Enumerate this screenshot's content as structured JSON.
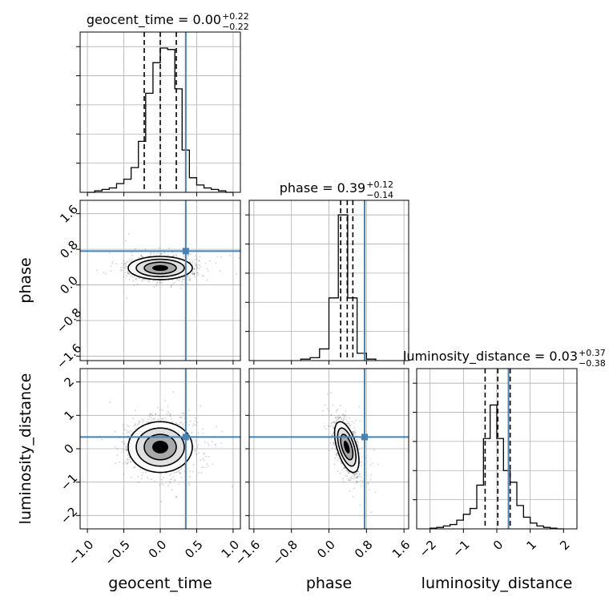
{
  "chart_data": {
    "type": "corner",
    "parameters": [
      "geocent_time",
      "phase",
      "luminosity_distance"
    ],
    "truth": {
      "geocent_time": 0.35,
      "phase": 0.76,
      "luminosity_distance": 0.35
    },
    "truth_color": "#4682b4",
    "grid": true,
    "diagonal": [
      {
        "parameter": "geocent_time",
        "title": {
          "prefix": "geocent_time = 0.00",
          "upper": "+0.22",
          "lower": "−0.22"
        },
        "quantiles": [
          -0.22,
          0.0,
          0.22
        ],
        "xlim": [
          -1.1,
          1.1
        ],
        "xticks": [
          -1.0,
          -0.5,
          0.0,
          0.5,
          1.0
        ],
        "xticklabels": [
          "−1.0",
          "−0.5",
          "0.0",
          "0.5",
          "1.0"
        ],
        "xlabel": "geocent_time",
        "ymax": 1.0,
        "hist": {
          "edges": [
            -1.0,
            -0.9,
            -0.8,
            -0.7,
            -0.6,
            -0.5,
            -0.4,
            -0.3,
            -0.2,
            -0.1,
            0.0,
            0.1,
            0.2,
            0.3,
            0.4,
            0.5,
            0.6,
            0.7,
            0.8,
            0.9,
            1.0
          ],
          "counts": [
            0.0,
            0.01,
            0.02,
            0.03,
            0.06,
            0.09,
            0.17,
            0.35,
            0.68,
            0.89,
            0.99,
            0.98,
            0.71,
            0.29,
            0.1,
            0.05,
            0.03,
            0.02,
            0.01,
            0.0
          ]
        }
      },
      {
        "parameter": "phase",
        "title": {
          "prefix": "phase = 0.39",
          "upper": "+0.12",
          "lower": "−0.14"
        },
        "quantiles": [
          0.25,
          0.39,
          0.51
        ],
        "xlim": [
          -1.7,
          1.7
        ],
        "xticks": [
          -1.6,
          -0.8,
          0.0,
          0.8,
          1.6
        ],
        "xticklabels": [
          "−1.6",
          "−0.8",
          "0.0",
          "0.8",
          "1.6"
        ],
        "xlabel": "phase",
        "ymax": 1.0,
        "hist": {
          "edges": [
            -0.6,
            -0.4,
            -0.2,
            0.0,
            0.2,
            0.4,
            0.6,
            0.8,
            1.0
          ],
          "counts": [
            0.01,
            0.02,
            0.08,
            0.43,
            1.0,
            0.43,
            0.05,
            0.01
          ]
        }
      },
      {
        "parameter": "luminosity_distance",
        "title": {
          "prefix": "luminosity_distance = 0.03",
          "upper": "+0.37",
          "lower": "−0.38"
        },
        "quantiles": [
          -0.35,
          0.03,
          0.4
        ],
        "xlim": [
          -2.4,
          2.4
        ],
        "xticks": [
          -2,
          -1,
          0,
          1,
          2
        ],
        "xticklabels": [
          "−2",
          "−1",
          "0",
          "1",
          "2"
        ],
        "xlabel": "luminosity_distance",
        "ymax": 1.0,
        "hist": {
          "edges": [
            -2.0,
            -1.8,
            -1.6,
            -1.4,
            -1.2,
            -1.0,
            -0.8,
            -0.6,
            -0.4,
            -0.2,
            0.0,
            0.2,
            0.4,
            0.6,
            0.8,
            1.0,
            1.2,
            1.4,
            1.6,
            1.8,
            2.0
          ],
          "counts": [
            0.005,
            0.01,
            0.02,
            0.03,
            0.06,
            0.1,
            0.14,
            0.3,
            0.62,
            0.85,
            0.62,
            0.4,
            0.32,
            0.16,
            0.08,
            0.04,
            0.02,
            0.01,
            0.005,
            0.0
          ]
        }
      }
    ],
    "off_diagonal": [
      {
        "x": "geocent_time",
        "y": "phase",
        "xlim": [
          -1.1,
          1.1
        ],
        "ylim": [
          -1.7,
          1.9
        ],
        "yticks": [
          -1.6,
          -0.8,
          0.0,
          0.8,
          1.6
        ],
        "yticklabels": [
          "−1.6",
          "−0.8",
          "0.0",
          "0.8",
          "1.6"
        ],
        "ylabel": "phase",
        "center": [
          0.0,
          0.38
        ],
        "spread": [
          0.22,
          0.13
        ],
        "corr": 0.0,
        "contour_levels": [
          1.0,
          2.0
        ]
      },
      {
        "x": "geocent_time",
        "y": "luminosity_distance",
        "xlim": [
          -1.1,
          1.1
        ],
        "ylim": [
          -2.4,
          2.4
        ],
        "yticks": [
          -2,
          -1,
          0,
          1,
          2
        ],
        "yticklabels": [
          "−2",
          "−1",
          "0",
          "1",
          "2"
        ],
        "ylabel": "luminosity_distance",
        "center": [
          0.0,
          0.05
        ],
        "spread": [
          0.22,
          0.38
        ],
        "corr": 0.0,
        "contour_levels": [
          1.0,
          2.0
        ]
      },
      {
        "x": "phase",
        "y": "luminosity_distance",
        "xlim": [
          -1.7,
          1.7
        ],
        "ylim": [
          -2.4,
          2.4
        ],
        "center": [
          0.38,
          0.05
        ],
        "spread": [
          0.13,
          0.38
        ],
        "corr": -0.55,
        "contour_levels": [
          1.0,
          2.0
        ]
      }
    ]
  }
}
